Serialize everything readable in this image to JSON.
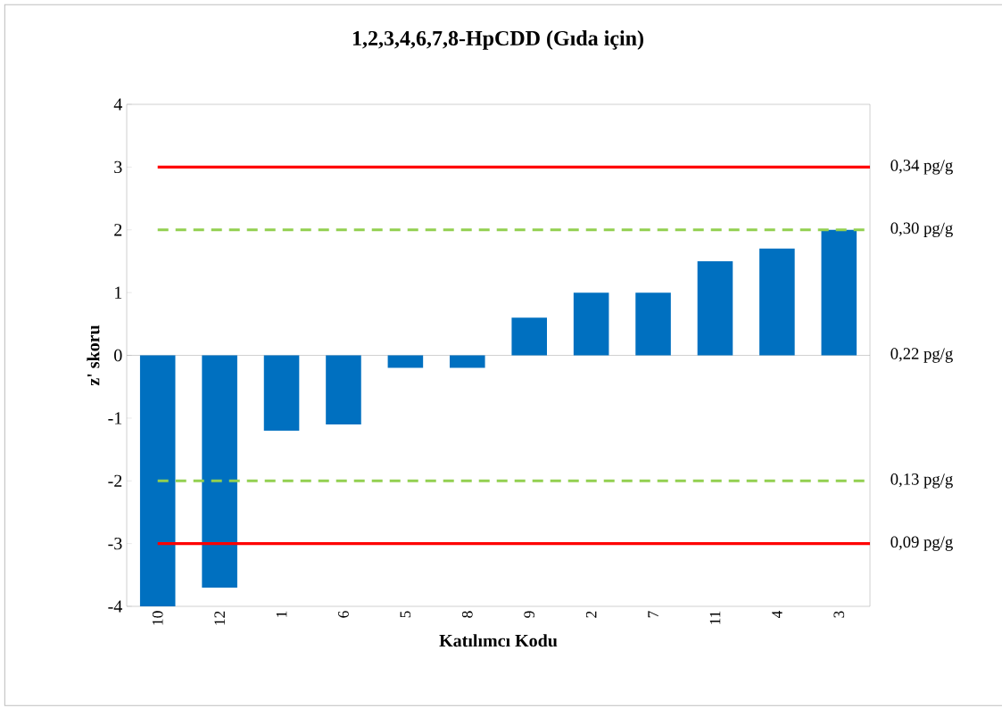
{
  "chart_data": {
    "type": "bar",
    "title": "1,2,3,4,6,7,8-HpCDD (Gıda için)",
    "xlabel": "Katılımcı Kodu",
    "ylabel": "z' skoru",
    "categories": [
      "10",
      "12",
      "1",
      "6",
      "5",
      "8",
      "9",
      "2",
      "7",
      "11",
      "4",
      "3"
    ],
    "values": [
      -4,
      -3.7,
      -1.2,
      -1.1,
      -0.2,
      -0.2,
      0.6,
      1,
      1,
      1.5,
      1.7,
      2
    ],
    "color": "#0070c0",
    "ylim": [
      -4,
      4
    ],
    "yticks": [
      -4,
      -3,
      -2,
      -1,
      0,
      1,
      2,
      3,
      4
    ],
    "ref_lines": [
      {
        "axis": "y",
        "value": 3,
        "label": "0,34 pg/g",
        "color": "#ff0000",
        "line_style": "solid"
      },
      {
        "axis": "y",
        "value": 2,
        "label": "0,30 pg/g",
        "color": "#92d050",
        "line_style": "dashed"
      },
      {
        "axis": "y",
        "value": -2,
        "label": "0,13 pg/g",
        "color": "#92d050",
        "line_style": "dashed"
      },
      {
        "axis": "y",
        "value": -3,
        "label": "0,09 pg/g",
        "color": "#ff0000",
        "line_style": "solid"
      }
    ],
    "annotations": [
      "0,22 pg/g"
    ]
  }
}
